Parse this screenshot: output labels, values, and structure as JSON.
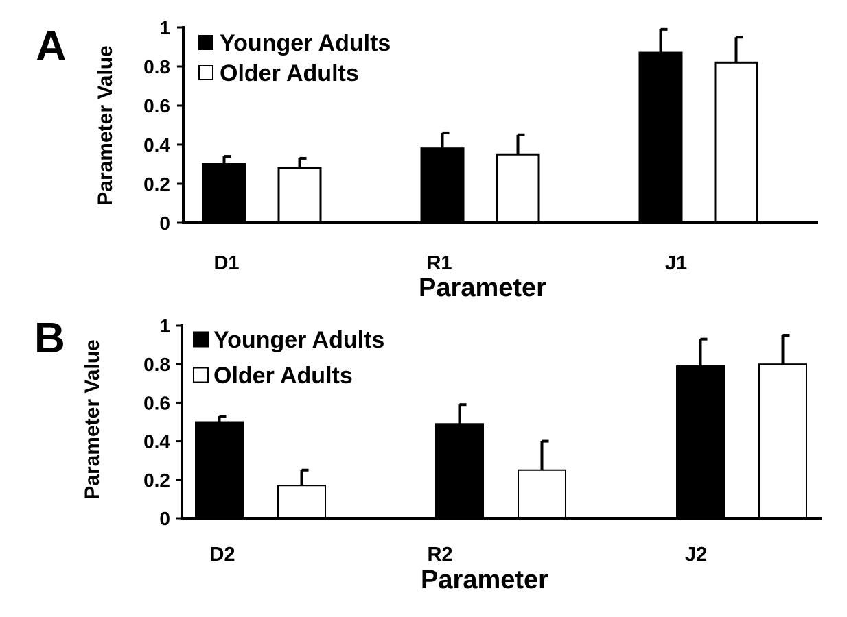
{
  "chart_data": [
    {
      "type": "bar",
      "panel_label": "A",
      "categories": [
        "D1",
        "R1",
        "J1"
      ],
      "series": [
        {
          "name": "Younger Adults",
          "values": [
            0.3,
            0.38,
            0.87
          ],
          "errors": [
            0.04,
            0.08,
            0.12
          ]
        },
        {
          "name": "Older Adults",
          "values": [
            0.28,
            0.35,
            0.82
          ],
          "errors": [
            0.05,
            0.1,
            0.13
          ]
        }
      ],
      "xlabel": "Parameter",
      "ylabel": "Parameter Value",
      "ylim": [
        0,
        1
      ],
      "yticks": [
        "0",
        "0.2",
        "0.4",
        "0.6",
        "0.8",
        "1"
      ],
      "grid": false,
      "legend_position": "top-left",
      "colors": {
        "younger": "#000000",
        "older": "#ffffff",
        "outline": "#000000"
      }
    },
    {
      "type": "bar",
      "panel_label": "B",
      "categories": [
        "D2",
        "R2",
        "J2"
      ],
      "series": [
        {
          "name": "Younger Adults",
          "values": [
            0.5,
            0.49,
            0.79
          ],
          "errors": [
            0.03,
            0.1,
            0.14
          ]
        },
        {
          "name": "Older Adults",
          "values": [
            0.17,
            0.25,
            0.8
          ],
          "errors": [
            0.08,
            0.15,
            0.15
          ]
        }
      ],
      "xlabel": "Parameter",
      "ylabel": "Parameter Value",
      "ylim": [
        0,
        1
      ],
      "yticks": [
        "0",
        "0.2",
        "0.4",
        "0.6",
        "0.8",
        "1"
      ],
      "grid": false,
      "legend_position": "top-left",
      "colors": {
        "younger": "#000000",
        "older": "#ffffff",
        "outline": "#000000"
      }
    }
  ]
}
